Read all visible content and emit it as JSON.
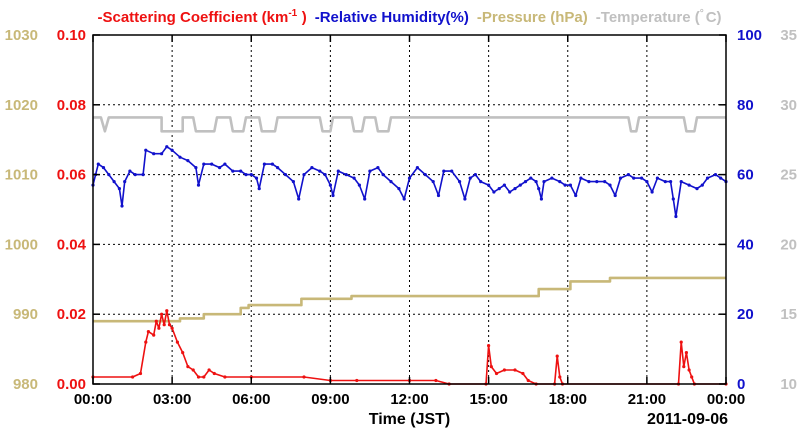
{
  "colors": {
    "scattering": "#ee1111",
    "humidity": "#1111cc",
    "pressure": "#c8b878",
    "temperature": "#c0c0c0",
    "pressure_axis": "#c8b878",
    "scattering_axis": "#ee1111",
    "humidity_axis": "#1111cc",
    "temperature_axis": "#c0c0c0",
    "grid": "#000000"
  },
  "chart_data": {
    "type": "line",
    "xlabel": "Time (JST)",
    "date_label": "2011-09-06",
    "x_tick_labels": [
      "00:00",
      "03:00",
      "06:00",
      "09:00",
      "12:00",
      "15:00",
      "18:00",
      "21:00",
      "00:00"
    ],
    "xlim": [
      0,
      24
    ],
    "grid": true,
    "legend_position": "top",
    "axes": {
      "pressure": {
        "label": "Pressure (hPa)",
        "lim": [
          980,
          1030
        ],
        "ticks": [
          "980",
          "990",
          "1000",
          "1010",
          "1020",
          "1030"
        ],
        "side": "left-outer"
      },
      "scattering": {
        "label": "Scattering Coefficient (km-1)",
        "lim": [
          0,
          0.1
        ],
        "ticks": [
          "0.00",
          "0.02",
          "0.04",
          "0.06",
          "0.08",
          "0.10"
        ],
        "side": "left-inner"
      },
      "humidity": {
        "label": "Relative Humidity(%)",
        "lim": [
          0,
          100
        ],
        "ticks": [
          "0",
          "20",
          "40",
          "60",
          "80",
          "100"
        ],
        "side": "right-inner"
      },
      "temperature": {
        "label": "Temperature (C)",
        "lim": [
          10,
          35
        ],
        "ticks": [
          "10",
          "15",
          "20",
          "25",
          "30",
          "35"
        ],
        "side": "right-outer"
      }
    },
    "legend": [
      {
        "key": "scattering",
        "text": "Scattering Coefficient (km",
        "sup": "-1",
        "text_after": ")"
      },
      {
        "key": "humidity",
        "text": "Relative Humidity(%)"
      },
      {
        "key": "pressure",
        "text": "Pressure (hPa)"
      },
      {
        "key": "temperature",
        "text": "Temperature (",
        "sup": "°",
        "text_after": "C)"
      }
    ],
    "series": [
      {
        "name": "Pressure (hPa)",
        "axis": "pressure",
        "points": [
          [
            0,
            989
          ],
          [
            3.3,
            989
          ],
          [
            3.3,
            989.4
          ],
          [
            4.2,
            989.4
          ],
          [
            4.2,
            990
          ],
          [
            5.6,
            990
          ],
          [
            5.6,
            990.9
          ],
          [
            5.9,
            990.9
          ],
          [
            5.9,
            991.3
          ],
          [
            7.9,
            991.3
          ],
          [
            7.9,
            992.2
          ],
          [
            9.8,
            992.2
          ],
          [
            9.8,
            992.6
          ],
          [
            16.9,
            992.6
          ],
          [
            16.9,
            993.6
          ],
          [
            18.1,
            993.6
          ],
          [
            18.1,
            994.7
          ],
          [
            19.6,
            994.7
          ],
          [
            19.6,
            995.2
          ],
          [
            24,
            995.2
          ]
        ]
      },
      {
        "name": "Temperature (C)",
        "axis": "temperature",
        "points": [
          [
            0,
            29.1
          ],
          [
            0.3,
            29.1
          ],
          [
            0.45,
            28.1
          ],
          [
            0.6,
            29.1
          ],
          [
            2.6,
            29.1
          ],
          [
            2.6,
            28.1
          ],
          [
            3.4,
            28.1
          ],
          [
            3.4,
            29.1
          ],
          [
            3.8,
            29.1
          ],
          [
            3.9,
            28.1
          ],
          [
            4.6,
            28.1
          ],
          [
            4.7,
            29.1
          ],
          [
            5.2,
            29.1
          ],
          [
            5.3,
            28.1
          ],
          [
            5.7,
            28.1
          ],
          [
            5.8,
            29.1
          ],
          [
            6.3,
            29.1
          ],
          [
            6.4,
            28.1
          ],
          [
            6.9,
            28.1
          ],
          [
            7.0,
            29.1
          ],
          [
            8.6,
            29.1
          ],
          [
            8.7,
            28.1
          ],
          [
            9.0,
            28.1
          ],
          [
            9.1,
            29.1
          ],
          [
            9.8,
            29.1
          ],
          [
            9.9,
            28.1
          ],
          [
            10.2,
            28.1
          ],
          [
            10.3,
            29.1
          ],
          [
            10.7,
            29.1
          ],
          [
            10.8,
            28.1
          ],
          [
            11.2,
            28.1
          ],
          [
            11.3,
            29.1
          ],
          [
            20.3,
            29.1
          ],
          [
            20.4,
            28.1
          ],
          [
            20.6,
            28.1
          ],
          [
            20.7,
            29.1
          ],
          [
            22.4,
            29.1
          ],
          [
            22.5,
            28.1
          ],
          [
            22.8,
            28.1
          ],
          [
            22.9,
            29.1
          ],
          [
            24,
            29.1
          ]
        ]
      },
      {
        "name": "Relative Humidity(%)",
        "axis": "humidity",
        "points": [
          [
            0,
            57
          ],
          [
            0.1,
            60
          ],
          [
            0.2,
            63
          ],
          [
            0.4,
            62
          ],
          [
            0.6,
            60
          ],
          [
            0.8,
            58
          ],
          [
            1.0,
            56
          ],
          [
            1.1,
            51
          ],
          [
            1.2,
            58
          ],
          [
            1.4,
            61
          ],
          [
            1.6,
            60
          ],
          [
            1.9,
            60
          ],
          [
            2.0,
            67
          ],
          [
            2.3,
            66
          ],
          [
            2.6,
            66
          ],
          [
            2.8,
            68
          ],
          [
            3.0,
            67
          ],
          [
            3.3,
            65
          ],
          [
            3.6,
            64
          ],
          [
            3.9,
            62
          ],
          [
            4.0,
            57
          ],
          [
            4.2,
            63
          ],
          [
            4.5,
            63
          ],
          [
            4.8,
            62
          ],
          [
            5.0,
            63
          ],
          [
            5.3,
            61
          ],
          [
            5.6,
            61
          ],
          [
            5.8,
            60
          ],
          [
            6.0,
            60
          ],
          [
            6.2,
            59
          ],
          [
            6.3,
            56
          ],
          [
            6.5,
            63
          ],
          [
            6.8,
            63
          ],
          [
            7.0,
            62
          ],
          [
            7.3,
            60
          ],
          [
            7.6,
            58
          ],
          [
            7.8,
            53
          ],
          [
            8.0,
            60
          ],
          [
            8.3,
            62
          ],
          [
            8.6,
            61
          ],
          [
            8.8,
            60
          ],
          [
            9.0,
            57
          ],
          [
            9.1,
            54
          ],
          [
            9.3,
            61
          ],
          [
            9.6,
            60
          ],
          [
            9.9,
            59
          ],
          [
            10.1,
            57
          ],
          [
            10.3,
            53
          ],
          [
            10.5,
            61
          ],
          [
            10.8,
            62
          ],
          [
            11.0,
            60
          ],
          [
            11.3,
            58
          ],
          [
            11.6,
            56
          ],
          [
            11.8,
            53
          ],
          [
            12.0,
            59
          ],
          [
            12.3,
            62
          ],
          [
            12.6,
            60
          ],
          [
            12.9,
            58
          ],
          [
            13.1,
            54
          ],
          [
            13.3,
            61
          ],
          [
            13.6,
            61
          ],
          [
            13.9,
            58
          ],
          [
            14.1,
            53
          ],
          [
            14.3,
            59
          ],
          [
            14.5,
            60
          ],
          [
            14.7,
            58
          ],
          [
            15.0,
            57
          ],
          [
            15.2,
            55
          ],
          [
            15.4,
            56
          ],
          [
            15.6,
            57
          ],
          [
            15.8,
            55
          ],
          [
            16.0,
            56
          ],
          [
            16.2,
            57
          ],
          [
            16.4,
            58
          ],
          [
            16.6,
            59
          ],
          [
            16.8,
            58
          ],
          [
            16.9,
            56
          ],
          [
            17.0,
            53
          ],
          [
            17.1,
            58
          ],
          [
            17.4,
            59
          ],
          [
            17.7,
            58
          ],
          [
            17.9,
            57
          ],
          [
            18.1,
            57
          ],
          [
            18.3,
            54
          ],
          [
            18.5,
            59
          ],
          [
            18.8,
            58
          ],
          [
            19.1,
            58
          ],
          [
            19.4,
            58
          ],
          [
            19.6,
            57
          ],
          [
            19.8,
            54
          ],
          [
            20.0,
            59
          ],
          [
            20.3,
            60
          ],
          [
            20.5,
            59
          ],
          [
            20.8,
            59
          ],
          [
            21.0,
            58
          ],
          [
            21.2,
            55
          ],
          [
            21.4,
            59
          ],
          [
            21.7,
            58
          ],
          [
            21.9,
            58
          ],
          [
            22.0,
            53
          ],
          [
            22.1,
            48
          ],
          [
            22.3,
            58
          ],
          [
            22.6,
            57
          ],
          [
            22.9,
            56
          ],
          [
            23.1,
            57
          ],
          [
            23.3,
            59
          ],
          [
            23.6,
            60
          ],
          [
            23.8,
            59
          ],
          [
            24,
            58
          ]
        ]
      },
      {
        "name": "Scattering Coefficient (km-1)",
        "axis": "scattering",
        "points": [
          [
            0,
            0.002
          ],
          [
            1.5,
            0.002
          ],
          [
            1.8,
            0.003
          ],
          [
            2.0,
            0.012
          ],
          [
            2.1,
            0.015
          ],
          [
            2.3,
            0.014
          ],
          [
            2.4,
            0.018
          ],
          [
            2.5,
            0.016
          ],
          [
            2.6,
            0.02
          ],
          [
            2.7,
            0.017
          ],
          [
            2.8,
            0.021
          ],
          [
            2.9,
            0.017
          ],
          [
            3.0,
            0.016
          ],
          [
            3.2,
            0.012
          ],
          [
            3.4,
            0.009
          ],
          [
            3.6,
            0.005
          ],
          [
            3.8,
            0.004
          ],
          [
            4.0,
            0.002
          ],
          [
            4.2,
            0.002
          ],
          [
            4.4,
            0.004
          ],
          [
            4.6,
            0.003
          ],
          [
            5.0,
            0.002
          ],
          [
            6.0,
            0.002
          ],
          [
            8.0,
            0.002
          ],
          [
            9.0,
            0.001
          ],
          [
            10.0,
            0.001
          ],
          [
            12.0,
            0.001
          ],
          [
            13.0,
            0.001
          ],
          [
            13.5,
            0.0
          ],
          [
            14.9,
            0.0
          ],
          [
            15.0,
            0.011
          ],
          [
            15.1,
            0.005
          ],
          [
            15.3,
            0.003
          ],
          [
            15.6,
            0.004
          ],
          [
            16.0,
            0.004
          ],
          [
            16.3,
            0.003
          ],
          [
            16.5,
            0.001
          ],
          [
            16.8,
            0.0
          ],
          [
            17.5,
            0.0
          ],
          [
            17.6,
            0.008
          ],
          [
            17.7,
            0.002
          ],
          [
            17.8,
            0.0
          ],
          [
            22.2,
            0.0
          ],
          [
            22.3,
            0.012
          ],
          [
            22.4,
            0.005
          ],
          [
            22.5,
            0.009
          ],
          [
            22.6,
            0.004
          ],
          [
            22.7,
            0.002
          ],
          [
            22.8,
            0.0
          ],
          [
            24,
            0.0
          ]
        ]
      }
    ]
  }
}
